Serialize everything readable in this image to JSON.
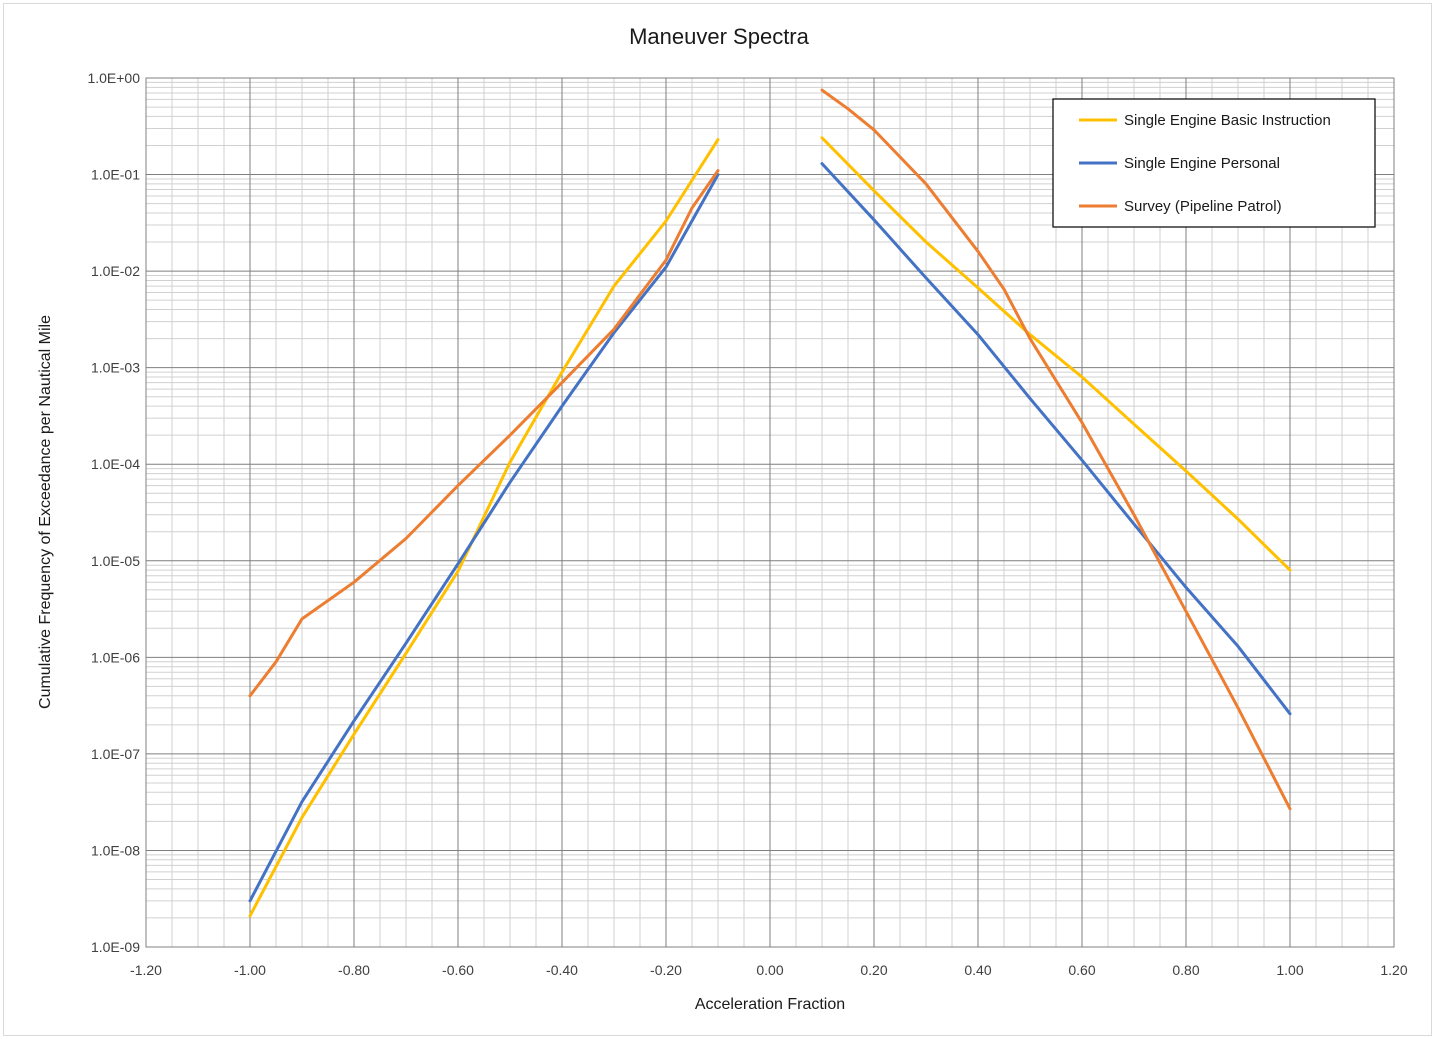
{
  "chart_data": {
    "type": "line",
    "title": "Maneuver Spectra",
    "xlabel": "Acceleration Fraction",
    "ylabel": "Cumulative Frequency of Exceedance per Nautical Mile",
    "xlim": [
      -1.2,
      1.2
    ],
    "ylim": [
      1e-09,
      1
    ],
    "y_scale": "log",
    "x_ticks": [
      -1.2,
      -1.0,
      -0.8,
      -0.6,
      -0.4,
      -0.2,
      0.0,
      0.2,
      0.4,
      0.6,
      0.8,
      1.0,
      1.2
    ],
    "x_tick_labels": [
      "-1.20",
      "-1.00",
      "-0.80",
      "-0.60",
      "-0.40",
      "-0.20",
      "0.00",
      "0.20",
      "0.40",
      "0.60",
      "0.80",
      "1.00",
      "1.20"
    ],
    "y_ticks": [
      1e-09,
      1e-08,
      1e-07,
      1e-06,
      1e-05,
      0.0001,
      0.001,
      0.01,
      0.1,
      1
    ],
    "y_tick_labels": [
      "1.0E-09",
      "1.0E-08",
      "1.0E-07",
      "1.0E-06",
      "1.0E-05",
      "1.0E-04",
      "1.0E-03",
      "1.0E-02",
      "1.0E-01",
      "1.0E+00"
    ],
    "grid": true,
    "legend_position": "top-right",
    "series": [
      {
        "name": "Single Engine Basic Instruction",
        "color": "#FFC000",
        "segments": [
          [
            [
              -1.0,
              2.1e-09
            ],
            [
              -0.9,
              2.2e-08
            ],
            [
              -0.8,
              1.6e-07
            ],
            [
              -0.7,
              1.1e-06
            ],
            [
              -0.6,
              7.8e-06
            ],
            [
              -0.5,
              0.000105
            ],
            [
              -0.4,
              0.0009
            ],
            [
              -0.3,
              0.007
            ],
            [
              -0.2,
              0.033
            ],
            [
              -0.1,
              0.23
            ]
          ],
          [
            [
              0.1,
              0.24
            ],
            [
              0.2,
              0.068
            ],
            [
              0.3,
              0.02
            ],
            [
              0.4,
              0.0067
            ],
            [
              0.5,
              0.0022
            ],
            [
              0.6,
              0.0008
            ],
            [
              0.7,
              0.00026
            ],
            [
              0.8,
              8.5e-05
            ],
            [
              0.9,
              2.7e-05
            ],
            [
              1.0,
              8e-06
            ]
          ]
        ]
      },
      {
        "name": "Single Engine Personal",
        "color": "#4472C4",
        "segments": [
          [
            [
              -1.0,
              3e-09
            ],
            [
              -0.9,
              3.2e-08
            ],
            [
              -0.8,
              2.2e-07
            ],
            [
              -0.7,
              1.4e-06
            ],
            [
              -0.6,
              9.3e-06
            ],
            [
              -0.5,
              6.5e-05
            ],
            [
              -0.4,
              0.0004
            ],
            [
              -0.3,
              0.0023
            ],
            [
              -0.2,
              0.011
            ],
            [
              -0.1,
              0.1
            ]
          ],
          [
            [
              0.1,
              0.13
            ],
            [
              0.2,
              0.034
            ],
            [
              0.3,
              0.0085
            ],
            [
              0.4,
              0.0022
            ],
            [
              0.5,
              0.00048
            ],
            [
              0.6,
              0.00011
            ],
            [
              0.7,
              2.4e-05
            ],
            [
              0.8,
              5.3e-06
            ],
            [
              0.9,
              1.3e-06
            ],
            [
              1.0,
              2.6e-07
            ]
          ]
        ]
      },
      {
        "name": "Survey (Pipeline Patrol)",
        "color": "#ED7D31",
        "segments": [
          [
            [
              -1.0,
              4e-07
            ],
            [
              -0.95,
              9e-07
            ],
            [
              -0.9,
              2.5e-06
            ],
            [
              -0.8,
              6e-06
            ],
            [
              -0.7,
              1.7e-05
            ],
            [
              -0.6,
              6e-05
            ],
            [
              -0.5,
              0.0002
            ],
            [
              -0.4,
              0.0007
            ],
            [
              -0.3,
              0.0025
            ],
            [
              -0.2,
              0.013
            ],
            [
              -0.15,
              0.045
            ],
            [
              -0.1,
              0.11
            ]
          ],
          [
            [
              0.1,
              0.75
            ],
            [
              0.15,
              0.48
            ],
            [
              0.2,
              0.29
            ],
            [
              0.3,
              0.08
            ],
            [
              0.4,
              0.016
            ],
            [
              0.45,
              0.0065
            ],
            [
              0.5,
              0.002
            ],
            [
              0.6,
              0.00027
            ],
            [
              0.7,
              3e-05
            ],
            [
              0.8,
              3e-06
            ],
            [
              0.9,
              3e-07
            ],
            [
              1.0,
              2.7e-08
            ]
          ]
        ]
      }
    ]
  }
}
